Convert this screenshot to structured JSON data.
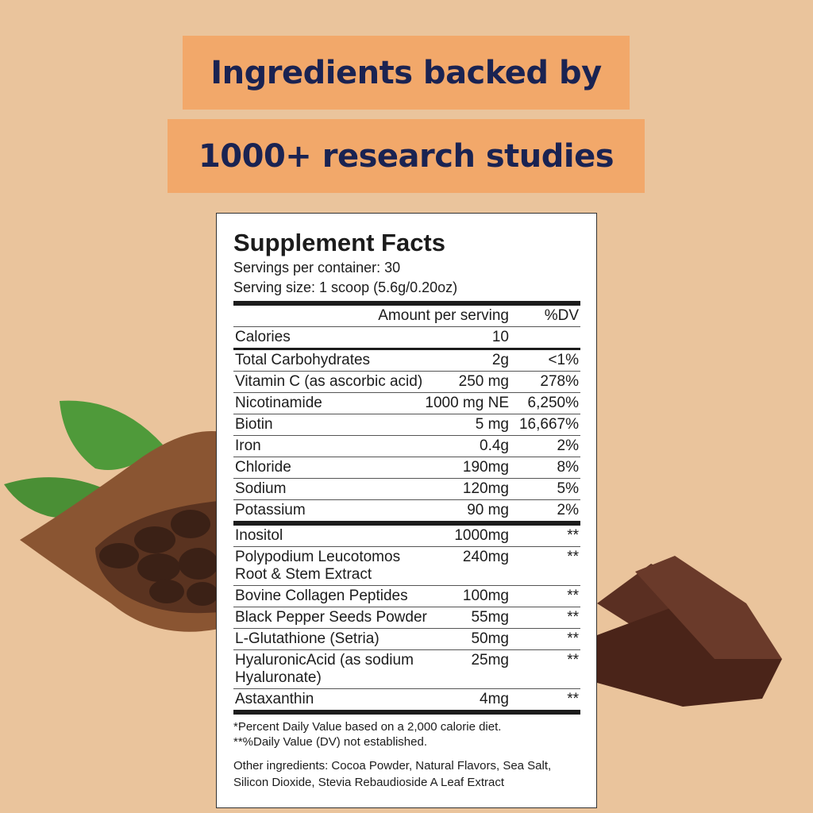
{
  "header": {
    "line1": "Ingredients backed by",
    "line2": "1000+ research studies"
  },
  "label": {
    "title": "Supplement Facts",
    "servings": "Servings per container: 30",
    "serving_size": "Serving size: 1 scoop (5.6g/0.20oz)",
    "table": {
      "header": [
        "Amount per serving",
        "%DV"
      ],
      "rows": [
        [
          "Calories",
          "10",
          ""
        ],
        [
          "Total Carbohydrates",
          "2g",
          "<1%"
        ],
        [
          "Vitamin C (as ascorbic acid)",
          "250 mg",
          "278%"
        ],
        [
          "Nicotinamide",
          "1000 mg NE",
          "6,250%"
        ],
        [
          "Biotin",
          "5 mg",
          "16,667%"
        ],
        [
          "Iron",
          "0.4g",
          "2%"
        ],
        [
          "Chloride",
          "190mg",
          "8%"
        ],
        [
          "Sodium",
          "120mg",
          "5%"
        ],
        [
          "Potassium",
          "90 mg",
          "2%"
        ]
      ],
      "extra_rows": [
        [
          "Inositol",
          "1000mg",
          "**"
        ],
        [
          "Polypodium Leucotomos\nRoot & Stem Extract",
          "240mg",
          "**"
        ],
        [
          "Bovine Collagen Peptides",
          "100mg",
          "**"
        ],
        [
          "Black Pepper Seeds Powder",
          "55mg",
          "**"
        ],
        [
          "L-Glutathione (Setria)",
          "50mg",
          "**"
        ],
        [
          "HyaluronicAcid (as sodium\nHyaluronate)",
          "25mg",
          "**"
        ],
        [
          "Astaxanthin",
          "4mg",
          "**"
        ]
      ]
    },
    "footnotes": [
      "*Percent Daily Value based on a 2,000 calorie diet.",
      "**%Daily Value (DV) not established."
    ],
    "other_ingredients": "Other ingredients: Cocoa Powder, Natural Flavors, Sea Salt, Silicon Dioxide, Stevia Rebaudioside A Leaf Extract"
  }
}
